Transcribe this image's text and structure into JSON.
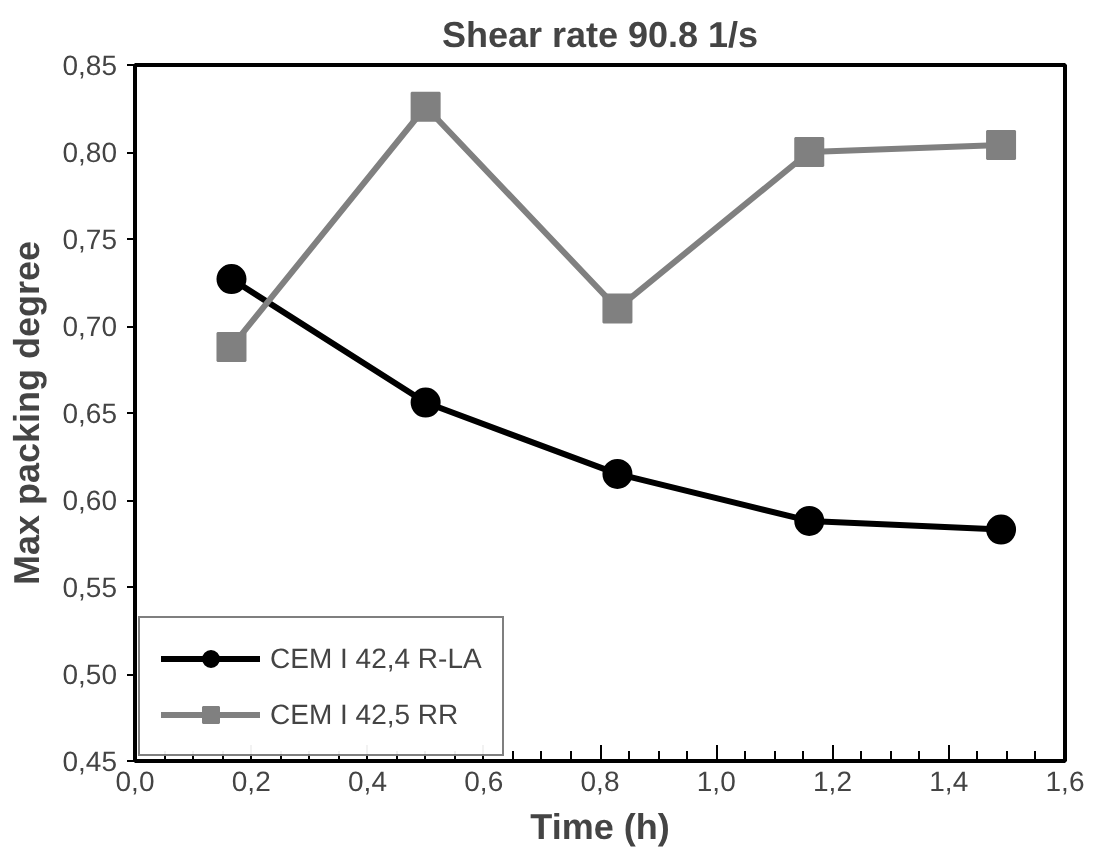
{
  "chart_data": {
    "type": "line",
    "title": "Shear rate 90.8 1/s",
    "xlabel": "Time (h)",
    "ylabel": "Max packing degree",
    "x": [
      0.166,
      0.5,
      0.83,
      1.16,
      1.49
    ],
    "series": [
      {
        "name": "CEM I 42,4 R-LA",
        "color": "#000000",
        "marker": "circle",
        "values": [
          0.727,
          0.656,
          0.615,
          0.588,
          0.583
        ]
      },
      {
        "name": "CEM I 42,5 RR",
        "color": "#808080",
        "marker": "square",
        "values": [
          0.688,
          0.826,
          0.71,
          0.8,
          0.804
        ]
      }
    ],
    "xlim": [
      0,
      1.6
    ],
    "xticks": [
      {
        "value": 0,
        "label": "0,0"
      },
      {
        "value": 0.2,
        "label": "0,2"
      },
      {
        "value": 0.4,
        "label": "0,4"
      },
      {
        "value": 0.6,
        "label": "0,6"
      },
      {
        "value": 0.8,
        "label": "0,8"
      },
      {
        "value": 1.0,
        "label": "1,0"
      },
      {
        "value": 1.2,
        "label": "1,2"
      },
      {
        "value": 1.4,
        "label": "1,4"
      },
      {
        "value": 1.6,
        "label": "1,6"
      }
    ],
    "ylim": [
      0.45,
      0.85
    ],
    "yticks": [
      {
        "value": 0.45,
        "label": "0,45"
      },
      {
        "value": 0.5,
        "label": "0,50"
      },
      {
        "value": 0.55,
        "label": "0,55"
      },
      {
        "value": 0.6,
        "label": "0,60"
      },
      {
        "value": 0.65,
        "label": "0,65"
      },
      {
        "value": 0.7,
        "label": "0,70"
      },
      {
        "value": 0.75,
        "label": "0,75"
      },
      {
        "value": 0.8,
        "label": "0,80"
      },
      {
        "value": 0.85,
        "label": "0,85"
      }
    ],
    "grid": false,
    "legend": "bottom left",
    "line_style": "solid"
  }
}
